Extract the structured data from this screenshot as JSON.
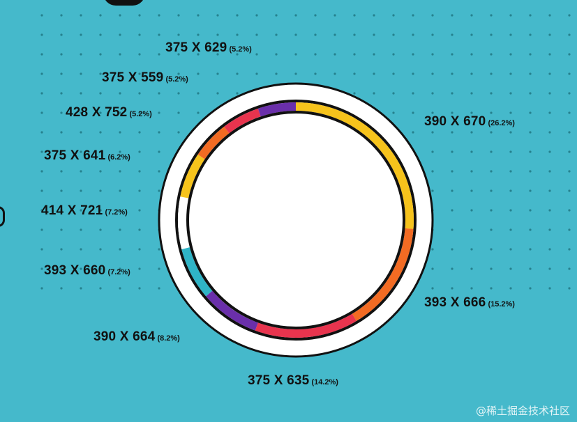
{
  "chart_data": {
    "type": "pie",
    "style": "ring",
    "title": "",
    "slices": [
      {
        "label": "390 X 670",
        "pct_label": "(26.2%)",
        "value": 26.2,
        "color": "#f6c31c"
      },
      {
        "label": "393 X 666",
        "pct_label": "(15.2%)",
        "value": 15.2,
        "color": "#f26b23"
      },
      {
        "label": "375 X 635",
        "pct_label": "(14.2%)",
        "value": 14.2,
        "color": "#e8344e"
      },
      {
        "label": "390 X 664",
        "pct_label": "(8.2%)",
        "value": 8.2,
        "color": "#6a2faa"
      },
      {
        "label": "393 X 660",
        "pct_label": "(7.2%)",
        "value": 7.2,
        "color": "#2fb4c6"
      },
      {
        "label": "414 X 721",
        "pct_label": "(7.2%)",
        "value": 7.2,
        "color": "#ffffff"
      },
      {
        "label": "375 X 641",
        "pct_label": "(6.2%)",
        "value": 6.2,
        "color": "#f6c31c"
      },
      {
        "label": "428 X 752",
        "pct_label": "(5.2%)",
        "value": 5.2,
        "color": "#f26b23"
      },
      {
        "label": "375 X 559",
        "pct_label": "(5.2%)",
        "value": 5.2,
        "color": "#e8344e"
      },
      {
        "label": "375 X 629",
        "pct_label": "(5.2%)",
        "value": 5.2,
        "color": "#6a2faa"
      }
    ]
  },
  "watermark": "@稀土掘金技术社区",
  "colors": {
    "background": "#45b9cb",
    "ink": "#111111",
    "dots": "#1b6f7a"
  }
}
